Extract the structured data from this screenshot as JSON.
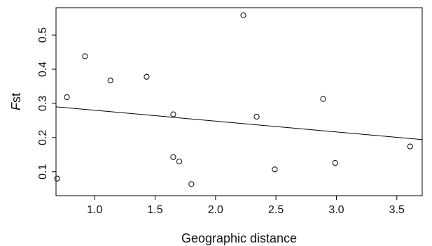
{
  "chart_data": {
    "type": "scatter",
    "title": "",
    "xlabel": "Geographic distance",
    "ylabel_italic_part": "F",
    "ylabel_rest": "st",
    "xlim": [
      0.68,
      3.71
    ],
    "ylim": [
      0.03,
      0.58
    ],
    "x_ticks": [
      1.0,
      1.5,
      2.0,
      2.5,
      3.0,
      3.5
    ],
    "x_tick_labels": [
      "1.0",
      "1.5",
      "2.0",
      "2.5",
      "3.0",
      "3.5"
    ],
    "y_ticks": [
      0.1,
      0.2,
      0.3,
      0.4,
      0.5
    ],
    "y_tick_labels": [
      "0.1",
      "0.2",
      "0.3",
      "0.4",
      "0.5"
    ],
    "grid": false,
    "legend": "none",
    "points": [
      {
        "x": 0.69,
        "y": 0.08
      },
      {
        "x": 0.77,
        "y": 0.318
      },
      {
        "x": 0.92,
        "y": 0.438
      },
      {
        "x": 1.13,
        "y": 0.367
      },
      {
        "x": 1.43,
        "y": 0.378
      },
      {
        "x": 1.65,
        "y": 0.268
      },
      {
        "x": 1.65,
        "y": 0.143
      },
      {
        "x": 1.7,
        "y": 0.13
      },
      {
        "x": 1.8,
        "y": 0.064
      },
      {
        "x": 2.23,
        "y": 0.558
      },
      {
        "x": 2.34,
        "y": 0.261
      },
      {
        "x": 2.49,
        "y": 0.107
      },
      {
        "x": 2.89,
        "y": 0.313
      },
      {
        "x": 2.99,
        "y": 0.126
      },
      {
        "x": 3.61,
        "y": 0.174
      }
    ],
    "regression_line": {
      "x": [
        0.68,
        3.71
      ],
      "y": [
        0.29,
        0.194
      ]
    },
    "colors": {
      "axis": "#000000",
      "points": "#000000",
      "line": "#000000"
    }
  }
}
